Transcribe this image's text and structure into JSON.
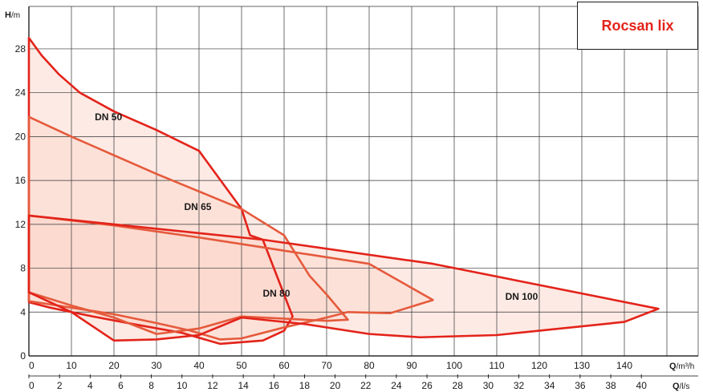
{
  "brand": {
    "title": "Rocsan lix",
    "color": "#e3231a"
  },
  "chart_data": {
    "type": "area",
    "y_axis": {
      "label_bold": "H",
      "label_unit": "/m",
      "ticks": [
        "0",
        "4",
        "8",
        "12",
        "16",
        "20",
        "24",
        "28"
      ],
      "range": [
        0,
        30.5
      ]
    },
    "x_axis_m3h": {
      "label_bold": "Q",
      "label_unit": "/m³/h",
      "ticks": [
        "0",
        "10",
        "20",
        "30",
        "40",
        "50",
        "60",
        "70",
        "80",
        "90",
        "100",
        "110",
        "120",
        "130",
        "140"
      ],
      "range": [
        0,
        156.5
      ]
    },
    "x_axis_ls": {
      "label_bold": "Q",
      "label_unit": "/l/s",
      "ticks": [
        "0",
        "2",
        "4",
        "6",
        "8",
        "10",
        "12",
        "14",
        "16",
        "18",
        "20",
        "22",
        "24",
        "26",
        "28",
        "30",
        "32",
        "34",
        "36",
        "38",
        "40"
      ]
    },
    "colors": {
      "outline": "#e3231a",
      "outline_mid": "#e55a3c",
      "outline_light": "#f0a898",
      "fill": "#fbd9cd",
      "grid": "#333333"
    },
    "series": [
      {
        "name": "DN 50",
        "label_at": [
          15.5,
          21.5
        ],
        "points": [
          [
            0,
            29
          ],
          [
            3,
            27.4
          ],
          [
            7,
            25.7
          ],
          [
            12,
            24
          ],
          [
            20,
            22.3
          ],
          [
            30,
            20.6
          ],
          [
            40,
            18.7
          ],
          [
            50,
            13.4
          ],
          [
            52,
            11
          ],
          [
            55,
            10.6
          ],
          [
            60,
            5.6
          ],
          [
            62,
            3.6
          ],
          [
            60,
            2.3
          ],
          [
            55,
            1.4
          ],
          [
            45,
            1.1
          ],
          [
            36,
            2.1
          ],
          [
            26,
            2.8
          ],
          [
            15,
            3.6
          ],
          [
            5,
            4.4
          ],
          [
            0,
            4.9
          ]
        ]
      },
      {
        "name": "DN 65",
        "label_at": [
          36.5,
          13.3
        ],
        "points": [
          [
            0,
            21.8
          ],
          [
            10,
            20
          ],
          [
            20,
            18.3
          ],
          [
            30,
            16.6
          ],
          [
            40,
            15
          ],
          [
            50,
            13.4
          ],
          [
            60,
            11
          ],
          [
            66,
            7.3
          ],
          [
            70,
            5.6
          ],
          [
            75,
            3.3
          ],
          [
            70,
            3.2
          ],
          [
            50,
            3.6
          ],
          [
            40,
            2.5
          ],
          [
            30,
            2
          ],
          [
            20,
            3.5
          ],
          [
            10,
            4.6
          ],
          [
            0,
            5.8
          ]
        ]
      },
      {
        "name": "DN 80",
        "label_at": [
          55,
          5.4
        ],
        "points": [
          [
            0,
            12.8
          ],
          [
            20,
            11.9
          ],
          [
            40,
            10.8
          ],
          [
            55,
            9.9
          ],
          [
            80,
            8.4
          ],
          [
            95,
            5.1
          ],
          [
            85,
            3.9
          ],
          [
            75,
            4
          ],
          [
            70,
            3.5
          ],
          [
            60,
            2.6
          ],
          [
            50,
            1.6
          ],
          [
            45,
            1.5
          ],
          [
            38,
            2.3
          ],
          [
            30,
            3
          ],
          [
            20,
            3.8
          ],
          [
            10,
            4.4
          ],
          [
            0,
            5
          ]
        ]
      },
      {
        "name": "DN 100",
        "label_at": [
          112,
          5.1
        ],
        "points": [
          [
            0,
            12.8
          ],
          [
            55,
            10.6
          ],
          [
            95,
            8.4
          ],
          [
            148,
            4.3
          ],
          [
            140,
            3.1
          ],
          [
            110,
            1.9
          ],
          [
            92,
            1.7
          ],
          [
            80,
            2
          ],
          [
            65,
            2.9
          ],
          [
            50,
            3.5
          ],
          [
            40,
            1.9
          ],
          [
            30,
            1.5
          ],
          [
            20,
            1.4
          ],
          [
            10,
            4
          ],
          [
            0,
            5.8
          ]
        ]
      }
    ]
  }
}
